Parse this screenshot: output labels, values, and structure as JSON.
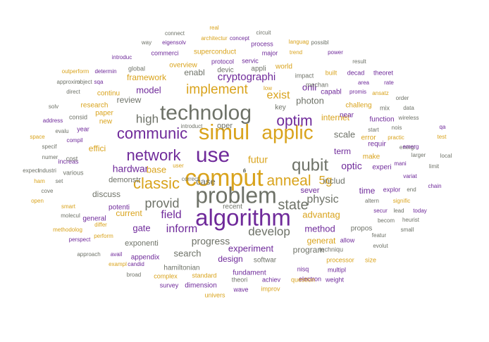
{
  "palette": {
    "gold": "#d9a31c",
    "purple": "#6f2a9a",
    "gray": "#6e7268",
    "slate": "#7b8177"
  },
  "words": [
    {
      "text": "comput",
      "size": 34,
      "color": "gold"
    },
    {
      "text": "algorithm",
      "size": 33,
      "color": "purple"
    },
    {
      "text": "problem",
      "size": 32,
      "color": "gray"
    },
    {
      "text": "simul",
      "size": 31,
      "color": "gold"
    },
    {
      "text": "technolog",
      "size": 30,
      "color": "gray"
    },
    {
      "text": "use",
      "size": 30,
      "color": "purple"
    },
    {
      "text": "applic",
      "size": 28,
      "color": "gold"
    },
    {
      "text": "qubit",
      "size": 24,
      "color": "gray"
    },
    {
      "text": "network",
      "size": 22,
      "color": "purple"
    },
    {
      "text": "communic",
      "size": 22,
      "color": "purple"
    },
    {
      "text": "classic",
      "size": 22,
      "color": "gold"
    },
    {
      "text": "anneal",
      "size": 21,
      "color": "gold"
    },
    {
      "text": "optim",
      "size": 21,
      "color": "purple"
    },
    {
      "text": "state",
      "size": 20,
      "color": "gray"
    },
    {
      "text": "implement",
      "size": 19,
      "color": "gold"
    },
    {
      "text": "provid",
      "size": 18,
      "color": "gray"
    },
    {
      "text": "high",
      "size": 17,
      "color": "gray"
    },
    {
      "text": "develop",
      "size": 17,
      "color": "gray"
    },
    {
      "text": "5g",
      "size": 17,
      "color": "gold"
    },
    {
      "text": "physic",
      "size": 16,
      "color": "gray"
    },
    {
      "text": "exist",
      "size": 16,
      "color": "gold"
    },
    {
      "text": "inform",
      "size": 16,
      "color": "purple"
    },
    {
      "text": "field",
      "size": 16,
      "color": "purple"
    },
    {
      "text": "cryptographi",
      "size": 15,
      "color": "purple"
    },
    {
      "text": "hardwar",
      "size": 14,
      "color": "purple"
    },
    {
      "text": "optic",
      "size": 14,
      "color": "purple"
    },
    {
      "text": "progress",
      "size": 14,
      "color": "gray"
    },
    {
      "text": "futur",
      "size": 14,
      "color": "gold"
    },
    {
      "text": "case",
      "size": 13,
      "color": "gray"
    },
    {
      "text": "base",
      "size": 13,
      "color": "gold"
    },
    {
      "text": "model",
      "size": 13,
      "color": "purple"
    },
    {
      "text": "scale",
      "size": 13,
      "color": "gray"
    },
    {
      "text": "onli",
      "size": 13,
      "color": "purple"
    },
    {
      "text": "photon",
      "size": 13,
      "color": "gray"
    },
    {
      "text": "experiment",
      "size": 13,
      "color": "purple"
    },
    {
      "text": "advantag",
      "size": 13,
      "color": "gold"
    },
    {
      "text": "method",
      "size": 13,
      "color": "purple"
    },
    {
      "text": "gate",
      "size": 13,
      "color": "purple"
    },
    {
      "text": "search",
      "size": 13,
      "color": "gray"
    },
    {
      "text": "includ",
      "size": 12,
      "color": "gray"
    },
    {
      "text": "term",
      "size": 12,
      "color": "purple"
    },
    {
      "text": "internet",
      "size": 12,
      "color": "gold"
    },
    {
      "text": "enabl",
      "size": 12,
      "color": "gray"
    },
    {
      "text": "review",
      "size": 12,
      "color": "gray"
    },
    {
      "text": "framework",
      "size": 12,
      "color": "gold"
    },
    {
      "text": "effici",
      "size": 12,
      "color": "gold"
    },
    {
      "text": "discuss",
      "size": 12,
      "color": "gray"
    },
    {
      "text": "current",
      "size": 12,
      "color": "gold"
    },
    {
      "text": "design",
      "size": 12,
      "color": "purple"
    },
    {
      "text": "generat",
      "size": 12,
      "color": "gold"
    },
    {
      "text": "program",
      "size": 12,
      "color": "gray"
    },
    {
      "text": "time",
      "size": 12,
      "color": "purple"
    },
    {
      "text": "sever",
      "size": 11,
      "color": "purple"
    },
    {
      "text": "exponenti",
      "size": 11,
      "color": "gray"
    },
    {
      "text": "demonstr",
      "size": 11,
      "color": "gray"
    },
    {
      "text": "oper",
      "size": 11,
      "color": "gray"
    },
    {
      "text": "recent",
      "size": 10,
      "color": "gray"
    },
    {
      "text": "appli",
      "size": 10,
      "color": "gray"
    },
    {
      "text": "devic",
      "size": 10,
      "color": "gray"
    },
    {
      "text": "key",
      "size": 10,
      "color": "gray"
    },
    {
      "text": "new",
      "size": 10,
      "color": "gold"
    },
    {
      "text": "fundament",
      "size": 10,
      "color": "purple"
    },
    {
      "text": "softwar",
      "size": 10,
      "color": "gray"
    },
    {
      "text": "potenti",
      "size": 10,
      "color": "purple"
    },
    {
      "text": "requir",
      "size": 10,
      "color": "purple"
    },
    {
      "text": "hamiltonian",
      "size": 10,
      "color": "gray"
    },
    {
      "text": "superconduct",
      "size": 10,
      "color": "gold"
    },
    {
      "text": "paper",
      "size": 10,
      "color": "gold"
    },
    {
      "text": "capabl",
      "size": 10,
      "color": "purple"
    },
    {
      "text": "experi",
      "size": 10,
      "color": "purple"
    },
    {
      "text": "function",
      "size": 10,
      "color": "purple"
    },
    {
      "text": "error",
      "size": 10,
      "color": "gold"
    },
    {
      "text": "overview",
      "size": 10,
      "color": "gold"
    },
    {
      "text": "protocol",
      "size": 9,
      "color": "purple"
    },
    {
      "text": "make",
      "size": 10,
      "color": "gold"
    },
    {
      "text": "near",
      "size": 10,
      "color": "purple"
    },
    {
      "text": "challeng",
      "size": 10,
      "color": "gold"
    },
    {
      "text": "world",
      "size": 10,
      "color": "gold"
    },
    {
      "text": "research",
      "size": 10,
      "color": "gold"
    },
    {
      "text": "propos",
      "size": 10,
      "color": "gray"
    },
    {
      "text": "appendix",
      "size": 10,
      "color": "purple"
    },
    {
      "text": "general",
      "size": 10,
      "color": "purple"
    },
    {
      "text": "dimension",
      "size": 10,
      "color": "purple"
    },
    {
      "text": "continu",
      "size": 10,
      "color": "gold"
    },
    {
      "text": "explor",
      "size": 9,
      "color": "purple"
    },
    {
      "text": "mix",
      "size": 9,
      "color": "gray"
    },
    {
      "text": "nisq",
      "size": 9,
      "color": "purple"
    },
    {
      "text": "electron",
      "size": 9,
      "color": "purple"
    },
    {
      "text": "processor",
      "size": 9,
      "color": "gold"
    },
    {
      "text": "achiev",
      "size": 9,
      "color": "purple"
    },
    {
      "text": "impact",
      "size": 9,
      "color": "gray"
    },
    {
      "text": "mechan",
      "size": 9,
      "color": "gray"
    },
    {
      "text": "built",
      "size": 9,
      "color": "gold"
    },
    {
      "text": "decad",
      "size": 9,
      "color": "purple"
    },
    {
      "text": "theoret",
      "size": 9,
      "color": "purple"
    },
    {
      "text": "major",
      "size": 9,
      "color": "purple"
    },
    {
      "text": "process",
      "size": 9,
      "color": "purple"
    },
    {
      "text": "servic",
      "size": 9,
      "color": "purple"
    },
    {
      "text": "global",
      "size": 9,
      "color": "gray"
    },
    {
      "text": "commerci",
      "size": 9,
      "color": "purple"
    },
    {
      "text": "various",
      "size": 9,
      "color": "gray"
    },
    {
      "text": "increas",
      "size": 9,
      "color": "purple"
    },
    {
      "text": "cost",
      "size": 9,
      "color": "gray"
    },
    {
      "text": "year",
      "size": 9,
      "color": "purple"
    },
    {
      "text": "consid",
      "size": 9,
      "color": "gray"
    },
    {
      "text": "wave",
      "size": 9,
      "color": "purple"
    },
    {
      "text": "theori",
      "size": 9,
      "color": "gray"
    },
    {
      "text": "improv",
      "size": 9,
      "color": "gold"
    },
    {
      "text": "complex",
      "size": 9,
      "color": "gold"
    },
    {
      "text": "standard",
      "size": 9,
      "color": "gold"
    },
    {
      "text": "survey",
      "size": 9,
      "color": "purple"
    },
    {
      "text": "univers",
      "size": 9,
      "color": "gold"
    },
    {
      "text": "question",
      "size": 9,
      "color": "gold"
    },
    {
      "text": "weight",
      "size": 9,
      "color": "purple"
    },
    {
      "text": "multipl",
      "size": 9,
      "color": "purple"
    },
    {
      "text": "techniqu",
      "size": 9,
      "color": "gray"
    },
    {
      "text": "allow",
      "size": 9,
      "color": "purple"
    },
    {
      "text": "size",
      "size": 9,
      "color": "gold"
    },
    {
      "text": "evolut",
      "size": 8,
      "color": "gray"
    },
    {
      "text": "small",
      "size": 8,
      "color": "gray"
    },
    {
      "text": "heurist",
      "size": 8,
      "color": "gray"
    },
    {
      "text": "becom",
      "size": 8,
      "color": "gray"
    },
    {
      "text": "lead",
      "size": 8,
      "color": "gray"
    },
    {
      "text": "today",
      "size": 8,
      "color": "purple"
    },
    {
      "text": "secur",
      "size": 8,
      "color": "purple"
    },
    {
      "text": "altern",
      "size": 8,
      "color": "gray"
    },
    {
      "text": "signific",
      "size": 8,
      "color": "gold"
    },
    {
      "text": "chain",
      "size": 8,
      "color": "purple"
    },
    {
      "text": "end",
      "size": 8,
      "color": "gray"
    },
    {
      "text": "variat",
      "size": 8,
      "color": "purple"
    },
    {
      "text": "mani",
      "size": 8,
      "color": "purple"
    },
    {
      "text": "energi",
      "size": 8,
      "color": "gray"
    },
    {
      "text": "larger",
      "size": 8,
      "color": "gray"
    },
    {
      "text": "limit",
      "size": 8,
      "color": "gray"
    },
    {
      "text": "local",
      "size": 8,
      "color": "gray"
    },
    {
      "text": "emerg",
      "size": 8,
      "color": "purple"
    },
    {
      "text": "test",
      "size": 8,
      "color": "gold"
    },
    {
      "text": "qa",
      "size": 8,
      "color": "purple"
    },
    {
      "text": "nois",
      "size": 8,
      "color": "gray"
    },
    {
      "text": "wireless",
      "size": 8,
      "color": "gray"
    },
    {
      "text": "start",
      "size": 8,
      "color": "gray"
    },
    {
      "text": "data",
      "size": 8,
      "color": "gray"
    },
    {
      "text": "order",
      "size": 8,
      "color": "gray"
    },
    {
      "text": "ansatz",
      "size": 8,
      "color": "gold"
    },
    {
      "text": "promis",
      "size": 8,
      "color": "purple"
    },
    {
      "text": "rate",
      "size": 8,
      "color": "purple"
    },
    {
      "text": "area",
      "size": 8,
      "color": "purple"
    },
    {
      "text": "result",
      "size": 8,
      "color": "gray"
    },
    {
      "text": "power",
      "size": 8,
      "color": "purple"
    },
    {
      "text": "trend",
      "size": 8,
      "color": "gold"
    },
    {
      "text": "languag",
      "size": 8,
      "color": "gold"
    },
    {
      "text": "possibl",
      "size": 8,
      "color": "gray"
    },
    {
      "text": "circuit",
      "size": 8,
      "color": "gray"
    },
    {
      "text": "concept",
      "size": 8,
      "color": "purple"
    },
    {
      "text": "architectur",
      "size": 8,
      "color": "gold"
    },
    {
      "text": "real",
      "size": 8,
      "color": "gold"
    },
    {
      "text": "connect",
      "size": 8,
      "color": "gray"
    },
    {
      "text": "eigensolv",
      "size": 8,
      "color": "purple"
    },
    {
      "text": "way",
      "size": 8,
      "color": "gray"
    },
    {
      "text": "introduc",
      "size": 8,
      "color": "purple"
    },
    {
      "text": "outperform",
      "size": 8,
      "color": "gold"
    },
    {
      "text": "determin",
      "size": 8,
      "color": "purple"
    },
    {
      "text": "approxim",
      "size": 8,
      "color": "gray"
    },
    {
      "text": "object",
      "size": 8,
      "color": "gray"
    },
    {
      "text": "sqa",
      "size": 8,
      "color": "purple"
    },
    {
      "text": "direct",
      "size": 8,
      "color": "gray"
    },
    {
      "text": "solv",
      "size": 8,
      "color": "gray"
    },
    {
      "text": "address",
      "size": 8,
      "color": "purple"
    },
    {
      "text": "evalu",
      "size": 8,
      "color": "gray"
    },
    {
      "text": "space",
      "size": 8,
      "color": "gold"
    },
    {
      "text": "compil",
      "size": 8,
      "color": "purple"
    },
    {
      "text": "specif",
      "size": 8,
      "color": "gray"
    },
    {
      "text": "numer",
      "size": 8,
      "color": "gray"
    },
    {
      "text": "expect",
      "size": 8,
      "color": "gray"
    },
    {
      "text": "industri",
      "size": 8,
      "color": "gray"
    },
    {
      "text": "ham",
      "size": 8,
      "color": "gold"
    },
    {
      "text": "set",
      "size": 8,
      "color": "gray"
    },
    {
      "text": "cove",
      "size": 8,
      "color": "gray"
    },
    {
      "text": "open",
      "size": 8,
      "color": "gold"
    },
    {
      "text": "smart",
      "size": 8,
      "color": "gold"
    },
    {
      "text": "molecul",
      "size": 8,
      "color": "gray"
    },
    {
      "text": "methodolog",
      "size": 8,
      "color": "gold"
    },
    {
      "text": "differ",
      "size": 8,
      "color": "gold"
    },
    {
      "text": "perspect",
      "size": 8,
      "color": "purple"
    },
    {
      "text": "perform",
      "size": 8,
      "color": "gold"
    },
    {
      "text": "approach",
      "size": 8,
      "color": "gray"
    },
    {
      "text": "avail",
      "size": 8,
      "color": "purple"
    },
    {
      "text": "exampl",
      "size": 8,
      "color": "gold"
    },
    {
      "text": "candid",
      "size": 8,
      "color": "purple"
    },
    {
      "text": "broad",
      "size": 8,
      "color": "gray"
    },
    {
      "text": "practic",
      "size": 8,
      "color": "gold"
    },
    {
      "text": "low",
      "size": 8,
      "color": "gold"
    },
    {
      "text": "featur",
      "size": 8,
      "color": "gray"
    },
    {
      "text": "introduct",
      "size": 8,
      "color": "gray"
    },
    {
      "text": "user",
      "size": 8,
      "color": "gold"
    },
    {
      "text": "correct",
      "size": 8,
      "color": "gray"
    },
    {
      "text": "n",
      "size": 8,
      "color": "gray"
    },
    {
      "text": "e",
      "size": 8,
      "color": "gray"
    },
    {
      "text": "f",
      "size": 8,
      "color": "gray"
    }
  ]
}
